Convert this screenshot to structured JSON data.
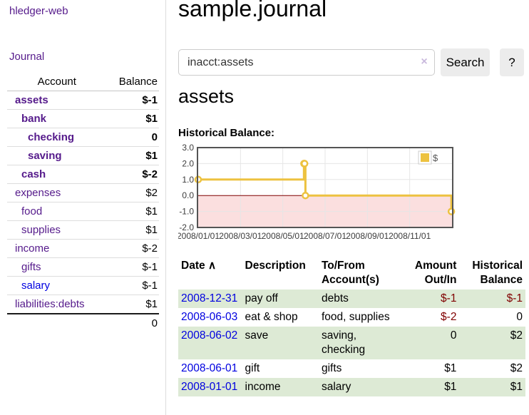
{
  "app": {
    "brand": "hledger-web"
  },
  "colors": {
    "accent_purple": "#551a8b",
    "link_blue": "#0000e0",
    "negative_red": "#800000",
    "row_highlight_green": "#ddead5",
    "series_yellow": "#edc240",
    "zero_line_red": "#800000",
    "negative_region_pink": "#fbdfdf",
    "chart_border_gray": "#545454"
  },
  "sidebar": {
    "journal_link": "Journal",
    "accounts": {
      "headers": {
        "account": "Account",
        "balance": "Balance"
      },
      "rows": [
        {
          "name": "assets",
          "balance": "$-1",
          "depth": 1,
          "bold": true,
          "negative": true
        },
        {
          "name": "bank",
          "balance": "$1",
          "depth": 2,
          "bold": true,
          "negative": false
        },
        {
          "name": "checking",
          "balance": "0",
          "depth": 3,
          "bold": true,
          "negative": false
        },
        {
          "name": "saving",
          "balance": "$1",
          "depth": 3,
          "bold": true,
          "negative": false
        },
        {
          "name": "cash",
          "balance": "$-2",
          "depth": 2,
          "bold": true,
          "negative": true
        },
        {
          "name": "expenses",
          "balance": "$2",
          "depth": 1,
          "bold": false,
          "negative": false
        },
        {
          "name": "food",
          "balance": "$1",
          "depth": 2,
          "bold": false,
          "negative": false
        },
        {
          "name": "supplies",
          "balance": "$1",
          "depth": 2,
          "bold": false,
          "negative": false
        },
        {
          "name": "income",
          "balance": "$-2",
          "depth": 1,
          "bold": false,
          "negative": true
        },
        {
          "name": "gifts",
          "balance": "$-1",
          "depth": 2,
          "bold": false,
          "negative": true
        },
        {
          "name": "salary",
          "balance": "$-1",
          "depth": 2,
          "bold": false,
          "negative": true,
          "link_color": "blue"
        },
        {
          "name": "liabilities:debts",
          "balance": "$1",
          "depth": 1,
          "bold": false,
          "negative": false
        }
      ],
      "total": "0"
    }
  },
  "main": {
    "title": "sample.journal",
    "search": {
      "value": "inacct:assets",
      "clear_icon": "×",
      "search_button": "Search",
      "help_button": "?"
    },
    "account_heading": "assets",
    "section_label": "Historical Balance:"
  },
  "chart_data": {
    "type": "line",
    "title": "Historical Balance",
    "steps": true,
    "legend": [
      {
        "label": "$",
        "color": "#edc240"
      }
    ],
    "legend_position": "top-right",
    "x_unit": "months since 2008-01-01",
    "xlim": [
      0,
      12
    ],
    "ylim": [
      -2,
      3
    ],
    "yticks": [
      3.0,
      2.0,
      1.0,
      0.0,
      -1.0,
      -2.0
    ],
    "xticks": [
      {
        "label": "2008/01/01",
        "x": 0
      },
      {
        "label": "2008/03/01",
        "x": 2
      },
      {
        "label": "2008/05/01",
        "x": 4
      },
      {
        "label": "2008/07/01",
        "x": 6
      },
      {
        "label": "2008/09/01",
        "x": 8
      },
      {
        "label": "2008/11/01",
        "x": 10
      }
    ],
    "series": [
      {
        "name": "$",
        "points": [
          {
            "date": "2008-01-01",
            "x": 0,
            "y": 1
          },
          {
            "date": "2008-06-01",
            "x": 5.0,
            "y": 2
          },
          {
            "date": "2008-06-02",
            "x": 5.03,
            "y": 2
          },
          {
            "date": "2008-06-03",
            "x": 5.07,
            "y": 0
          },
          {
            "date": "2008-12-31",
            "x": 11.97,
            "y": -1
          }
        ]
      }
    ],
    "grid": true,
    "negative_region_shaded": true
  },
  "register": {
    "headers": {
      "date": "Date",
      "sort_icon": "∧",
      "description": "Description",
      "accounts": "To/From Account(s)",
      "amount": "Amount Out/In",
      "balance": "Historical Balance"
    },
    "rows": [
      {
        "date": "2008-12-31",
        "description": "pay off",
        "accounts": "debts",
        "amount": "$-1",
        "amount_negative": true,
        "balance": "$-1",
        "balance_negative": true,
        "highlighted": true
      },
      {
        "date": "2008-06-03",
        "description": "eat & shop",
        "accounts": "food, supplies",
        "amount": "$-2",
        "amount_negative": true,
        "balance": "0",
        "balance_negative": false,
        "highlighted": false
      },
      {
        "date": "2008-06-02",
        "description": "save",
        "accounts": "saving, checking",
        "amount": "0",
        "amount_negative": false,
        "balance": "$2",
        "balance_negative": false,
        "highlighted": true
      },
      {
        "date": "2008-06-01",
        "description": "gift",
        "accounts": "gifts",
        "amount": "$1",
        "amount_negative": false,
        "balance": "$2",
        "balance_negative": false,
        "highlighted": false
      },
      {
        "date": "2008-01-01",
        "description": "income",
        "accounts": "salary",
        "amount": "$1",
        "amount_negative": false,
        "balance": "$1",
        "balance_negative": false,
        "highlighted": true
      }
    ]
  }
}
